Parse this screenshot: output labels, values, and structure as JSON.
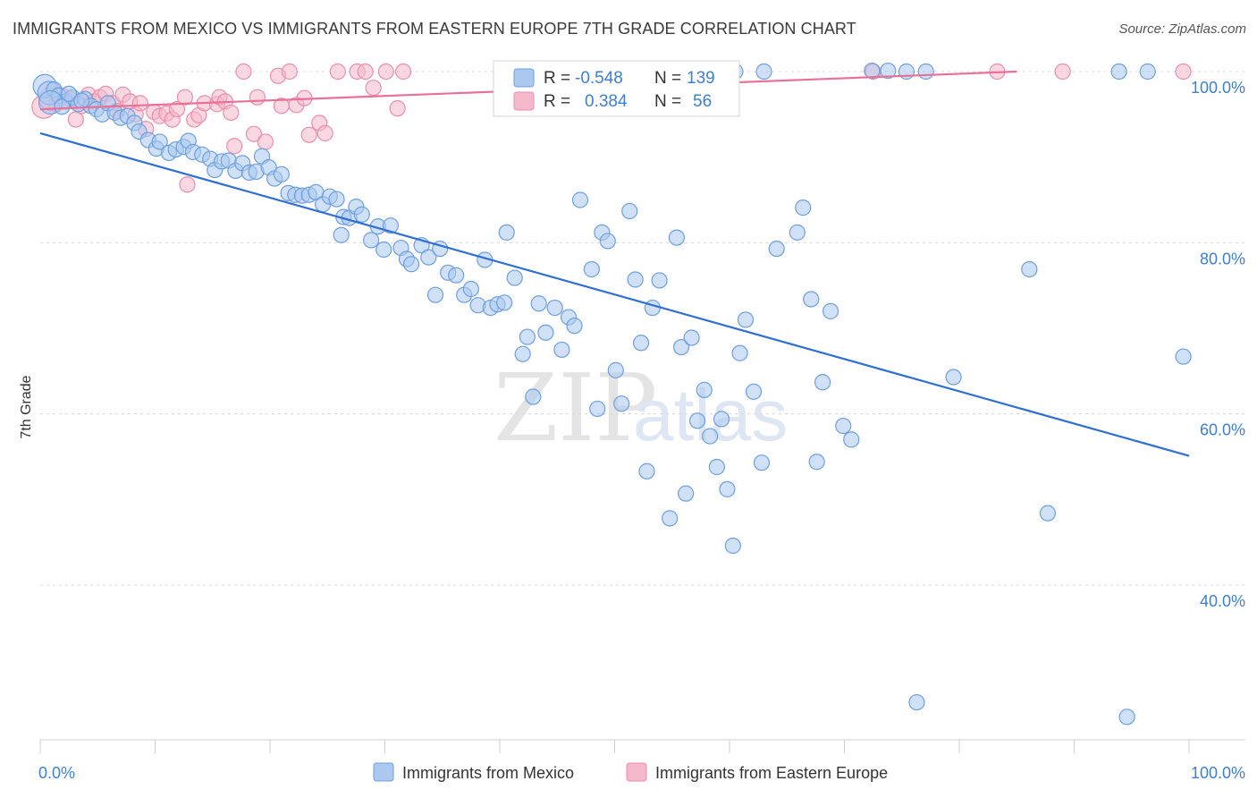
{
  "title": "IMMIGRANTS FROM MEXICO VS IMMIGRANTS FROM EASTERN EUROPE 7TH GRADE CORRELATION CHART",
  "source": "Source: ZipAtlas.com",
  "watermark": {
    "zip": "ZIP",
    "atlas": "atlas"
  },
  "colors": {
    "mexico_fill": "#aac8f0",
    "mexico_stroke": "#6d9fe0",
    "mexico_line": "#2f6fcf",
    "ee_fill": "#f5b8cb",
    "ee_stroke": "#ea8eac",
    "ee_line": "#e8719a",
    "axis_text": "#3f7fd0",
    "grid": "#d8d8d8"
  },
  "stats": {
    "mexico": {
      "r_label": "R =",
      "r_value": "-0.548",
      "n_label": "N =",
      "n_value": "139"
    },
    "eastern_europe": {
      "r_label": "R =",
      "r_value": "0.384",
      "n_label": "N =",
      "n_value": "56"
    }
  },
  "chart_data": {
    "type": "scatter",
    "title": "IMMIGRANTS FROM MEXICO VS IMMIGRANTS FROM EASTERN EUROPE 7TH GRADE CORRELATION CHART",
    "xlabel": "",
    "ylabel": "7th Grade",
    "xlim": [
      0,
      100
    ],
    "ylim": [
      20,
      103
    ],
    "x_tick_labels": [
      "0.0%",
      "100.0%"
    ],
    "y_ticks": [
      100,
      80,
      60,
      40
    ],
    "y_tick_labels": [
      "100.0%",
      "80.0%",
      "60.0%",
      "40.0%"
    ],
    "grid": true,
    "legend_position": "bottom",
    "series": [
      {
        "name": "Immigrants from Mexico",
        "color": "#aac8f0",
        "trend": {
          "x": [
            0,
            100
          ],
          "y": [
            92.8,
            55.1
          ]
        },
        "points": [
          [
            0.4,
            98.3
          ],
          [
            0.8,
            97.5
          ],
          [
            1.2,
            97.9
          ],
          [
            1.6,
            97.2
          ],
          [
            2.2,
            96.5
          ],
          [
            2.8,
            97.0
          ],
          [
            3.3,
            96.2
          ],
          [
            3.9,
            96.8
          ],
          [
            4.4,
            96.0
          ],
          [
            4.9,
            95.6
          ],
          [
            5.4,
            95.0
          ],
          [
            5.9,
            96.3
          ],
          [
            6.5,
            95.2
          ],
          [
            7.0,
            94.6
          ],
          [
            7.6,
            94.8
          ],
          [
            8.2,
            94.0
          ],
          [
            8.6,
            93.0
          ],
          [
            9.4,
            92.0
          ],
          [
            10.1,
            91.0
          ],
          [
            10.4,
            91.8
          ],
          [
            11.2,
            90.5
          ],
          [
            11.8,
            90.9
          ],
          [
            12.5,
            91.2
          ],
          [
            12.9,
            91.9
          ],
          [
            13.3,
            90.6
          ],
          [
            14.1,
            90.3
          ],
          [
            14.8,
            89.8
          ],
          [
            15.2,
            88.5
          ],
          [
            15.8,
            89.5
          ],
          [
            16.4,
            89.6
          ],
          [
            17.0,
            88.4
          ],
          [
            17.6,
            89.3
          ],
          [
            18.2,
            88.2
          ],
          [
            18.8,
            88.3
          ],
          [
            19.3,
            90.1
          ],
          [
            19.9,
            88.8
          ],
          [
            20.4,
            87.5
          ],
          [
            21.0,
            88.0
          ],
          [
            21.6,
            85.8
          ],
          [
            22.2,
            85.6
          ],
          [
            22.8,
            85.5
          ],
          [
            23.4,
            85.6
          ],
          [
            24.0,
            85.9
          ],
          [
            24.6,
            84.5
          ],
          [
            25.2,
            85.4
          ],
          [
            25.8,
            85.1
          ],
          [
            26.4,
            83.0
          ],
          [
            26.9,
            82.9
          ],
          [
            27.5,
            84.2
          ],
          [
            28.0,
            83.3
          ],
          [
            26.2,
            80.9
          ],
          [
            28.8,
            80.3
          ],
          [
            29.4,
            81.9
          ],
          [
            29.9,
            79.2
          ],
          [
            30.5,
            82.0
          ],
          [
            31.4,
            79.4
          ],
          [
            31.9,
            78.1
          ],
          [
            32.3,
            77.5
          ],
          [
            33.2,
            79.7
          ],
          [
            33.8,
            78.3
          ],
          [
            34.4,
            73.9
          ],
          [
            34.8,
            79.3
          ],
          [
            35.5,
            76.5
          ],
          [
            36.2,
            76.2
          ],
          [
            36.9,
            73.9
          ],
          [
            37.5,
            74.6
          ],
          [
            38.1,
            72.7
          ],
          [
            38.7,
            78.0
          ],
          [
            39.2,
            72.4
          ],
          [
            39.8,
            72.8
          ],
          [
            40.4,
            73.0
          ],
          [
            40.6,
            81.2
          ],
          [
            41.3,
            75.9
          ],
          [
            42.0,
            67.0
          ],
          [
            42.4,
            69.0
          ],
          [
            42.9,
            62.0
          ],
          [
            43.4,
            72.9
          ],
          [
            44.0,
            69.5
          ],
          [
            44.8,
            72.4
          ],
          [
            45.4,
            67.5
          ],
          [
            46.0,
            71.3
          ],
          [
            46.5,
            70.3
          ],
          [
            47.0,
            85.0
          ],
          [
            48.0,
            76.9
          ],
          [
            48.5,
            60.6
          ],
          [
            48.9,
            81.2
          ],
          [
            49.4,
            80.2
          ],
          [
            50.1,
            65.1
          ],
          [
            50.6,
            61.2
          ],
          [
            51.3,
            83.7
          ],
          [
            51.8,
            75.7
          ],
          [
            52.3,
            68.3
          ],
          [
            52.8,
            53.3
          ],
          [
            53.3,
            72.4
          ],
          [
            53.9,
            75.6
          ],
          [
            54.8,
            47.8
          ],
          [
            55.4,
            80.6
          ],
          [
            55.8,
            67.8
          ],
          [
            56.2,
            50.7
          ],
          [
            56.7,
            68.9
          ],
          [
            57.2,
            59.2
          ],
          [
            57.8,
            62.8
          ],
          [
            58.3,
            57.4
          ],
          [
            58.9,
            53.8
          ],
          [
            59.3,
            59.4
          ],
          [
            59.8,
            51.2
          ],
          [
            60.3,
            44.6
          ],
          [
            60.9,
            67.1
          ],
          [
            61.4,
            71.0
          ],
          [
            62.1,
            62.6
          ],
          [
            62.8,
            54.3
          ],
          [
            64.1,
            79.3
          ],
          [
            65.9,
            81.2
          ],
          [
            66.4,
            84.1
          ],
          [
            67.1,
            73.4
          ],
          [
            67.6,
            54.4
          ],
          [
            68.1,
            63.7
          ],
          [
            68.8,
            72.0
          ],
          [
            69.9,
            58.6
          ],
          [
            70.6,
            57.0
          ],
          [
            72.4,
            100.1
          ],
          [
            73.8,
            100.1
          ],
          [
            75.4,
            100.0
          ],
          [
            77.1,
            100.0
          ],
          [
            76.3,
            26.3
          ],
          [
            79.5,
            64.3
          ],
          [
            86.1,
            76.9
          ],
          [
            87.7,
            48.4
          ],
          [
            93.9,
            100.0
          ],
          [
            94.6,
            24.6
          ],
          [
            96.4,
            100.0
          ],
          [
            99.5,
            66.7
          ],
          [
            60.5,
            100.0
          ],
          [
            63.0,
            100.0
          ],
          [
            0.9,
            96.4
          ],
          [
            1.9,
            95.9
          ],
          [
            2.5,
            97.4
          ],
          [
            3.6,
            96.6
          ],
          [
            45.0,
            100.0
          ]
        ]
      },
      {
        "name": "Immigrants from Eastern Europe",
        "color": "#f5b8cb",
        "trend": {
          "x": [
            0,
            85
          ],
          "y": [
            95.6,
            100.0
          ]
        },
        "points": [
          [
            0.3,
            95.9
          ],
          [
            0.9,
            96.8
          ],
          [
            1.4,
            96.2
          ],
          [
            1.9,
            97.2
          ],
          [
            2.6,
            96.8
          ],
          [
            3.1,
            94.4
          ],
          [
            3.6,
            96.0
          ],
          [
            4.2,
            97.3
          ],
          [
            4.7,
            96.5
          ],
          [
            5.2,
            97.0
          ],
          [
            5.7,
            97.4
          ],
          [
            6.3,
            96.3
          ],
          [
            6.7,
            95.4
          ],
          [
            7.2,
            97.3
          ],
          [
            7.8,
            96.5
          ],
          [
            8.3,
            95.0
          ],
          [
            8.7,
            96.3
          ],
          [
            9.2,
            93.3
          ],
          [
            9.9,
            95.3
          ],
          [
            10.4,
            94.8
          ],
          [
            11.0,
            95.1
          ],
          [
            11.5,
            94.4
          ],
          [
            11.9,
            95.6
          ],
          [
            12.6,
            97.0
          ],
          [
            12.8,
            86.8
          ],
          [
            13.4,
            94.4
          ],
          [
            13.8,
            94.9
          ],
          [
            14.3,
            96.3
          ],
          [
            15.4,
            96.2
          ],
          [
            15.6,
            97.0
          ],
          [
            16.1,
            96.5
          ],
          [
            16.6,
            95.2
          ],
          [
            16.9,
            91.3
          ],
          [
            17.7,
            100.0
          ],
          [
            18.6,
            92.7
          ],
          [
            18.9,
            97.0
          ],
          [
            19.6,
            91.8
          ],
          [
            20.7,
            99.5
          ],
          [
            21.0,
            96.0
          ],
          [
            21.7,
            100.0
          ],
          [
            22.3,
            96.1
          ],
          [
            23.0,
            96.9
          ],
          [
            23.4,
            92.6
          ],
          [
            24.3,
            94.0
          ],
          [
            24.8,
            92.8
          ],
          [
            25.9,
            100.0
          ],
          [
            27.6,
            100.0
          ],
          [
            28.3,
            100.0
          ],
          [
            29.0,
            98.1
          ],
          [
            30.1,
            100.0
          ],
          [
            31.1,
            95.7
          ],
          [
            31.6,
            100.0
          ],
          [
            72.5,
            100.0
          ],
          [
            83.3,
            100.0
          ],
          [
            89.0,
            100.0
          ],
          [
            99.5,
            100.0
          ]
        ]
      }
    ]
  }
}
